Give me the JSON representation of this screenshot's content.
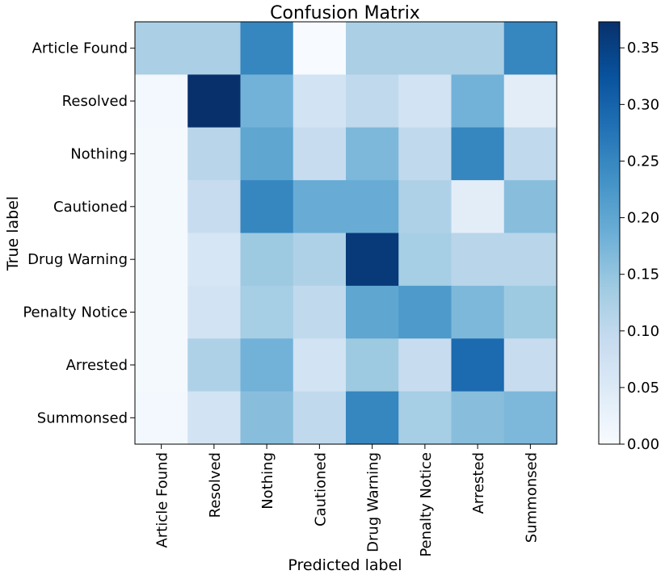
{
  "chart_data": {
    "type": "heatmap",
    "title": "Confusion Matrix",
    "xlabel": "Predicted label",
    "ylabel": "True label",
    "x_categories": [
      "Article Found",
      "Resolved",
      "Nothing",
      "Cautioned",
      "Drug Warning",
      "Penalty Notice",
      "Arrested",
      "Summonsed"
    ],
    "y_categories": [
      "Article Found",
      "Resolved",
      "Nothing",
      "Cautioned",
      "Drug Warning",
      "Penalty Notice",
      "Arrested",
      "Summonsed"
    ],
    "values": [
      [
        0.125,
        0.125,
        0.25,
        0.0,
        0.125,
        0.125,
        0.125,
        0.25
      ],
      [
        0.01,
        0.373,
        0.18,
        0.07,
        0.1,
        0.07,
        0.18,
        0.04
      ],
      [
        0.005,
        0.11,
        0.2,
        0.09,
        0.17,
        0.1,
        0.25,
        0.1
      ],
      [
        0.005,
        0.09,
        0.25,
        0.19,
        0.19,
        0.12,
        0.04,
        0.16
      ],
      [
        0.005,
        0.06,
        0.14,
        0.12,
        0.36,
        0.13,
        0.11,
        0.11
      ],
      [
        0.005,
        0.07,
        0.13,
        0.1,
        0.2,
        0.22,
        0.17,
        0.14
      ],
      [
        0.005,
        0.12,
        0.18,
        0.07,
        0.14,
        0.09,
        0.29,
        0.09
      ],
      [
        0.01,
        0.07,
        0.16,
        0.1,
        0.25,
        0.13,
        0.16,
        0.17
      ]
    ],
    "colorbar": {
      "colormap": "Blues",
      "range": [
        0.0,
        0.373
      ],
      "ticks": [
        0.0,
        0.05,
        0.1,
        0.15,
        0.2,
        0.25,
        0.3,
        0.35
      ],
      "tick_labels": [
        "0.00",
        "0.05",
        "0.10",
        "0.15",
        "0.20",
        "0.25",
        "0.30",
        "0.35"
      ]
    }
  }
}
